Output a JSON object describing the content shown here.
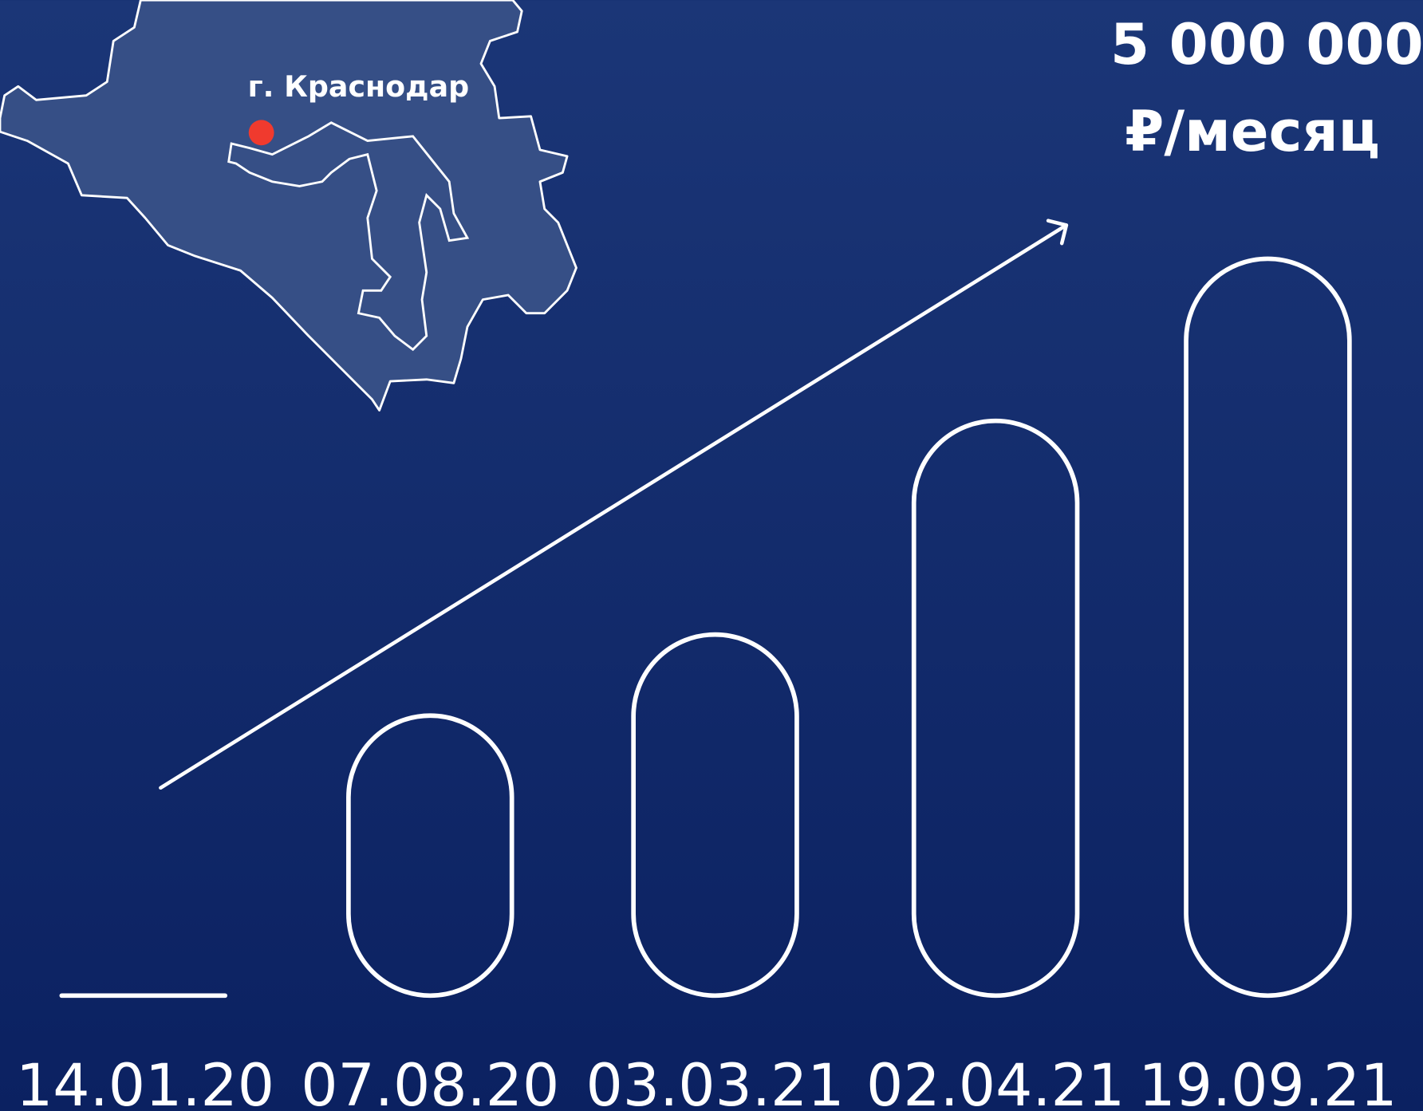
{
  "chart_data": {
    "type": "bar",
    "title_lines": [
      "5 000 000",
      "₽/месяц"
    ],
    "map_label": "г. Краснодар",
    "categories": [
      "14.01.20",
      "07.08.20",
      "03.03.21",
      "02.04.21",
      "19.09.21"
    ],
    "values": [
      0,
      1900000,
      2450000,
      3900000,
      5000000
    ],
    "ylim": [
      0,
      5000000
    ],
    "color": "#ffffff"
  }
}
